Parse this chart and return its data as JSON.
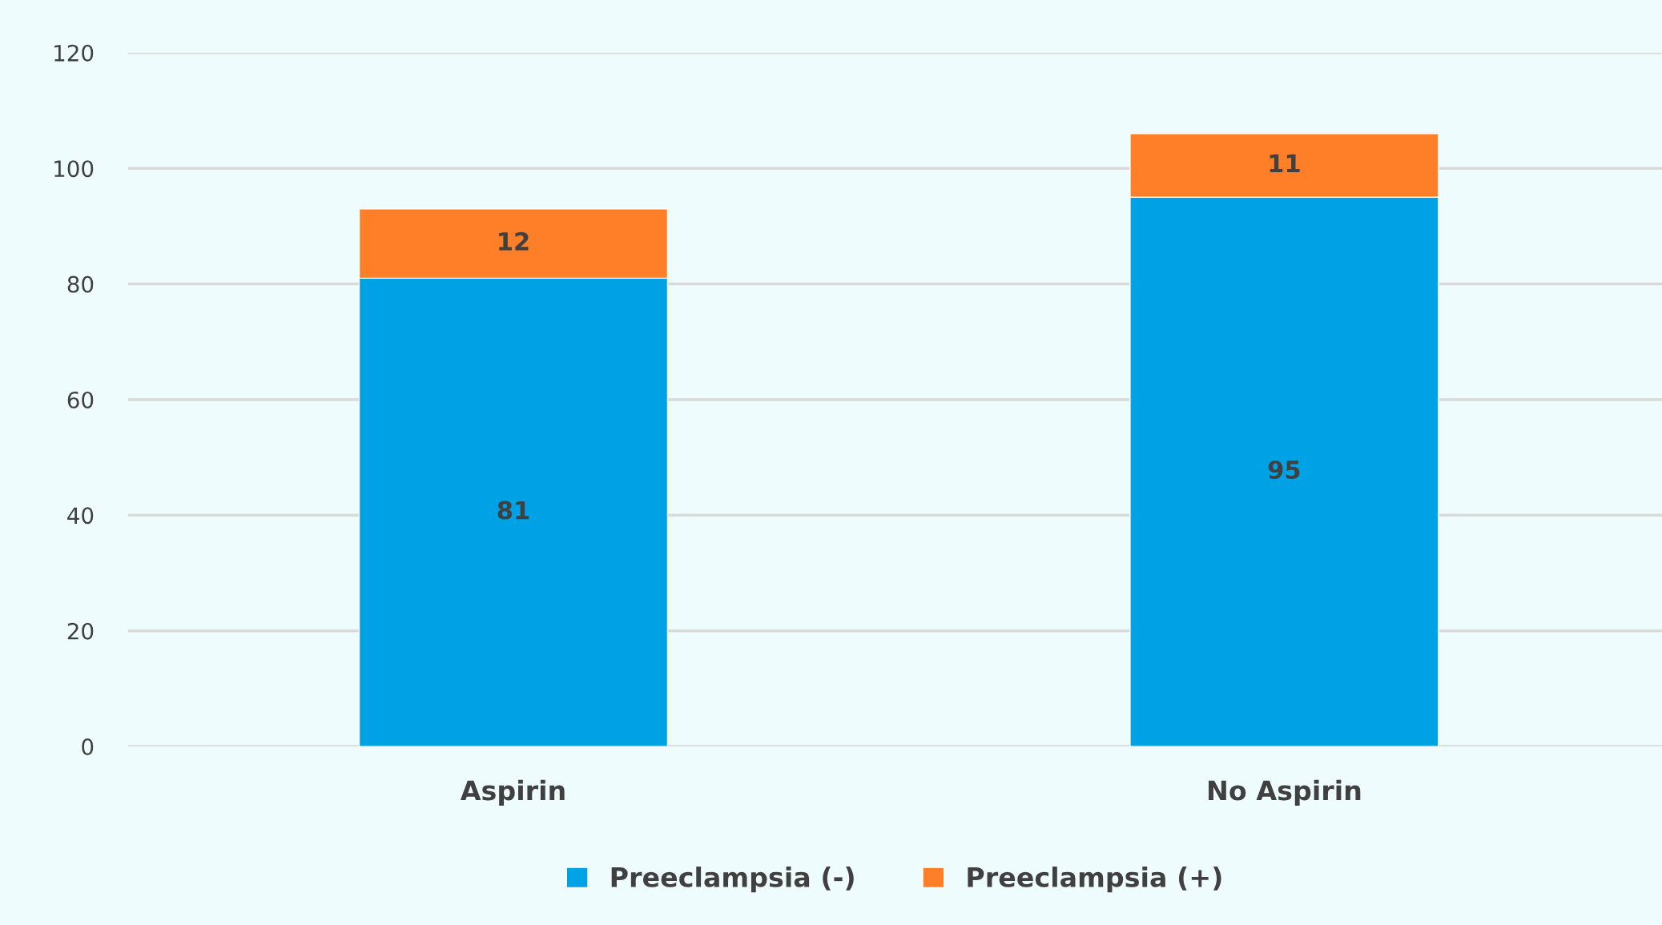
{
  "chart_data": {
    "type": "bar",
    "stacked": true,
    "categories": [
      "Aspirin",
      "No Aspirin"
    ],
    "series": [
      {
        "name": "Preeclampsia (-)",
        "color": "#00a2e6",
        "values": [
          81,
          95
        ]
      },
      {
        "name": "Preeclampsia (+)",
        "color": "#fe7f27",
        "values": [
          12,
          11
        ]
      }
    ],
    "ylim": [
      0,
      120
    ],
    "yticks": [
      0,
      20,
      40,
      60,
      80,
      100,
      120
    ],
    "grid": "y",
    "legend": "bottom",
    "data_labels": true
  }
}
